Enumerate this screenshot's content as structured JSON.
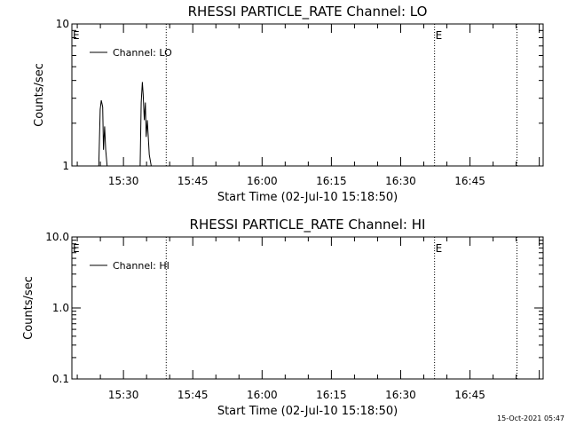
{
  "footer": {
    "timestamp": "15-Oct-2021 05:47"
  },
  "chart_data": [
    {
      "type": "line",
      "title": "RHESSI PARTICLE_RATE Channel: LO",
      "xlabel": "Start Time (02-Jul-10 15:18:50)",
      "ylabel": "Counts/sec",
      "yscale": "log",
      "ylim": [
        1,
        10
      ],
      "xlim": [
        15.3139,
        17.0139
      ],
      "y_ticks": [
        {
          "value": 1,
          "label": "1"
        },
        {
          "value": 10,
          "label": "10"
        }
      ],
      "x_ticks": [
        {
          "value": 15.5,
          "label": "15:30"
        },
        {
          "value": 15.75,
          "label": "15:45"
        },
        {
          "value": 16.0,
          "label": "16:00"
        },
        {
          "value": 16.25,
          "label": "16:15"
        },
        {
          "value": 16.5,
          "label": "16:30"
        },
        {
          "value": 16.75,
          "label": "16:45"
        }
      ],
      "legend": {
        "label": "Channel: LO",
        "position": "top-left"
      },
      "markers": [
        {
          "x": 15.6542,
          "label": ""
        },
        {
          "x": 16.6222,
          "label": "E"
        },
        {
          "x": 16.9194,
          "label": ""
        }
      ],
      "edge_label": "E",
      "series": [
        {
          "x": [
            15.3139,
            15.411,
            15.416,
            15.42,
            15.425,
            15.428,
            15.432,
            15.436,
            15.441,
            15.449,
            15.56,
            15.564,
            15.568,
            15.571,
            15.575,
            15.579,
            15.582,
            15.586,
            15.593,
            15.6,
            15.65,
            17.0139
          ],
          "y": [
            1,
            1,
            2.5,
            2.9,
            2.6,
            1.3,
            1.9,
            1.3,
            1,
            1,
            1,
            2.8,
            3.9,
            3.2,
            2.1,
            2.8,
            1.6,
            2.1,
            1.2,
            1,
            1,
            1
          ]
        }
      ]
    },
    {
      "type": "line",
      "title": "RHESSI PARTICLE_RATE Channel: HI",
      "xlabel": "Start Time (02-Jul-10 15:18:50)",
      "ylabel": "Counts/sec",
      "yscale": "log",
      "ylim": [
        0.1,
        10
      ],
      "xlim": [
        15.3139,
        17.0139
      ],
      "y_ticks": [
        {
          "value": 0.1,
          "label": "0.1"
        },
        {
          "value": 1,
          "label": "1.0"
        },
        {
          "value": 10,
          "label": "10.0"
        }
      ],
      "x_ticks": [
        {
          "value": 15.5,
          "label": "15:30"
        },
        {
          "value": 15.75,
          "label": "15:45"
        },
        {
          "value": 16.0,
          "label": "16:00"
        },
        {
          "value": 16.25,
          "label": "16:15"
        },
        {
          "value": 16.5,
          "label": "16:30"
        },
        {
          "value": 16.75,
          "label": "16:45"
        }
      ],
      "legend": {
        "label": "Channel: HI",
        "position": "top-left"
      },
      "markers": [
        {
          "x": 15.6542,
          "label": ""
        },
        {
          "x": 16.6222,
          "label": "E"
        },
        {
          "x": 16.9194,
          "label": ""
        }
      ],
      "edge_label": "E",
      "series": [
        {
          "x": [],
          "y": []
        }
      ]
    }
  ]
}
